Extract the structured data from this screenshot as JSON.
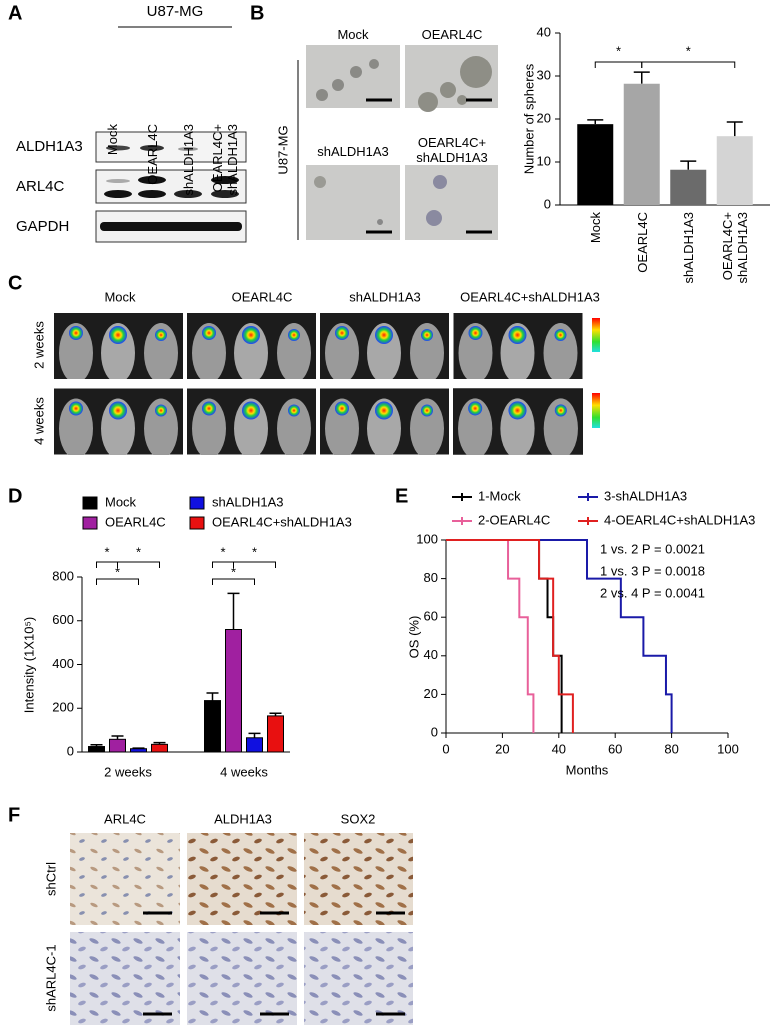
{
  "figure": {
    "panel_labels": [
      "A",
      "B",
      "C",
      "D",
      "E",
      "F"
    ],
    "a": {
      "cell_line": "U87-MG",
      "lanes": [
        "Mock",
        "OEARL4C",
        "shALDH1A3",
        "OEARL4C+ shALDH1A3"
      ],
      "blots": [
        "ALDH1A3",
        "ARL4C",
        "GAPDH"
      ]
    },
    "b": {
      "cell_line": "U87-MG",
      "images": [
        "Mock",
        "OEARL4C",
        "shALDH1A3",
        "OEARL4C+ shALDH1A3"
      ]
    },
    "c": {
      "groups": [
        "Mock",
        "OEARL4C",
        "shALDH1A3",
        "OEARL4C+shALDH1A3"
      ],
      "timepoints": [
        "2 weeks",
        "4 weeks"
      ]
    },
    "f": {
      "stains": [
        "ARL4C",
        "ALDH1A3",
        "SOX2"
      ],
      "conditions": [
        "shCtrl",
        "shARL4C-1"
      ]
    }
  },
  "chart_data": [
    {
      "type": "bar",
      "ylabel": "Number of spheres",
      "categories": [
        "Mock",
        "OEARL4C",
        "shALDH1A3",
        "OEARL4C+ shALDH1A3"
      ],
      "values": [
        18.8,
        28.2,
        8.2,
        16
      ],
      "errors": [
        1,
        2.7,
        2,
        3.3
      ],
      "colors": [
        "#000000",
        "#a6a6a6",
        "#6b6b6b",
        "#d4d4d4"
      ],
      "ylim": [
        0,
        40
      ],
      "yticks": [
        0,
        10,
        20,
        30,
        40
      ],
      "annotations": [
        "*",
        "*"
      ]
    },
    {
      "type": "grouped_bar",
      "ylabel": "Intensity (1X10⁵)",
      "categories": [
        "2 weeks",
        "4 weeks"
      ],
      "series": [
        {
          "name": "Mock",
          "color": "#000000",
          "values": [
            25,
            235
          ],
          "errors": [
            8,
            35
          ]
        },
        {
          "name": "OEARL4C",
          "color": "#a020a0",
          "values": [
            58,
            560
          ],
          "errors": [
            15,
            165
          ]
        },
        {
          "name": "shALDH1A3",
          "color": "#1010e0",
          "values": [
            15,
            65
          ],
          "errors": [
            3,
            20
          ]
        },
        {
          "name": "OEARL4C+shALDH1A3",
          "color": "#e81010",
          "values": [
            35,
            165
          ],
          "errors": [
            8,
            12
          ]
        }
      ],
      "ylim": [
        0,
        800
      ],
      "yticks": [
        0,
        200,
        400,
        600,
        800
      ],
      "annotations": [
        "*",
        "*",
        "*",
        "*",
        "*",
        "*"
      ]
    },
    {
      "type": "line",
      "xlabel": "Months",
      "ylabel": "OS (%)",
      "series": [
        {
          "name": "1-Mock",
          "color": "#000000",
          "x": [
            0,
            33,
            33,
            36,
            36,
            38,
            38,
            41,
            41
          ],
          "values": [
            100,
            100,
            80,
            80,
            60,
            60,
            40,
            40,
            0
          ]
        },
        {
          "name": "2-OEARL4C",
          "color": "#e8609a",
          "x": [
            0,
            22,
            22,
            26,
            26,
            29,
            29,
            31,
            31
          ],
          "values": [
            100,
            100,
            80,
            80,
            60,
            60,
            20,
            20,
            0
          ]
        },
        {
          "name": "3-shALDH1A3",
          "color": "#1a1aa8",
          "x": [
            0,
            50,
            50,
            62,
            62,
            70,
            70,
            78,
            78,
            80,
            80
          ],
          "values": [
            100,
            100,
            80,
            80,
            60,
            60,
            40,
            40,
            20,
            20,
            0
          ]
        },
        {
          "name": "4-OEARL4C+shALDH1A3",
          "color": "#e02020",
          "x": [
            0,
            33,
            33,
            38,
            38,
            40,
            40,
            45,
            45
          ],
          "values": [
            100,
            100,
            80,
            80,
            40,
            40,
            20,
            20,
            0
          ]
        }
      ],
      "xlim": [
        0,
        100
      ],
      "xticks": [
        0,
        20,
        40,
        60,
        80,
        100
      ],
      "ylim": [
        0,
        100
      ],
      "yticks": [
        0,
        20,
        40,
        60,
        80,
        100
      ],
      "annotations": [
        "1 vs. 2 P = 0.0021",
        "1 vs. 3 P = 0.0018",
        "2 vs. 4 P = 0.0041"
      ]
    }
  ]
}
